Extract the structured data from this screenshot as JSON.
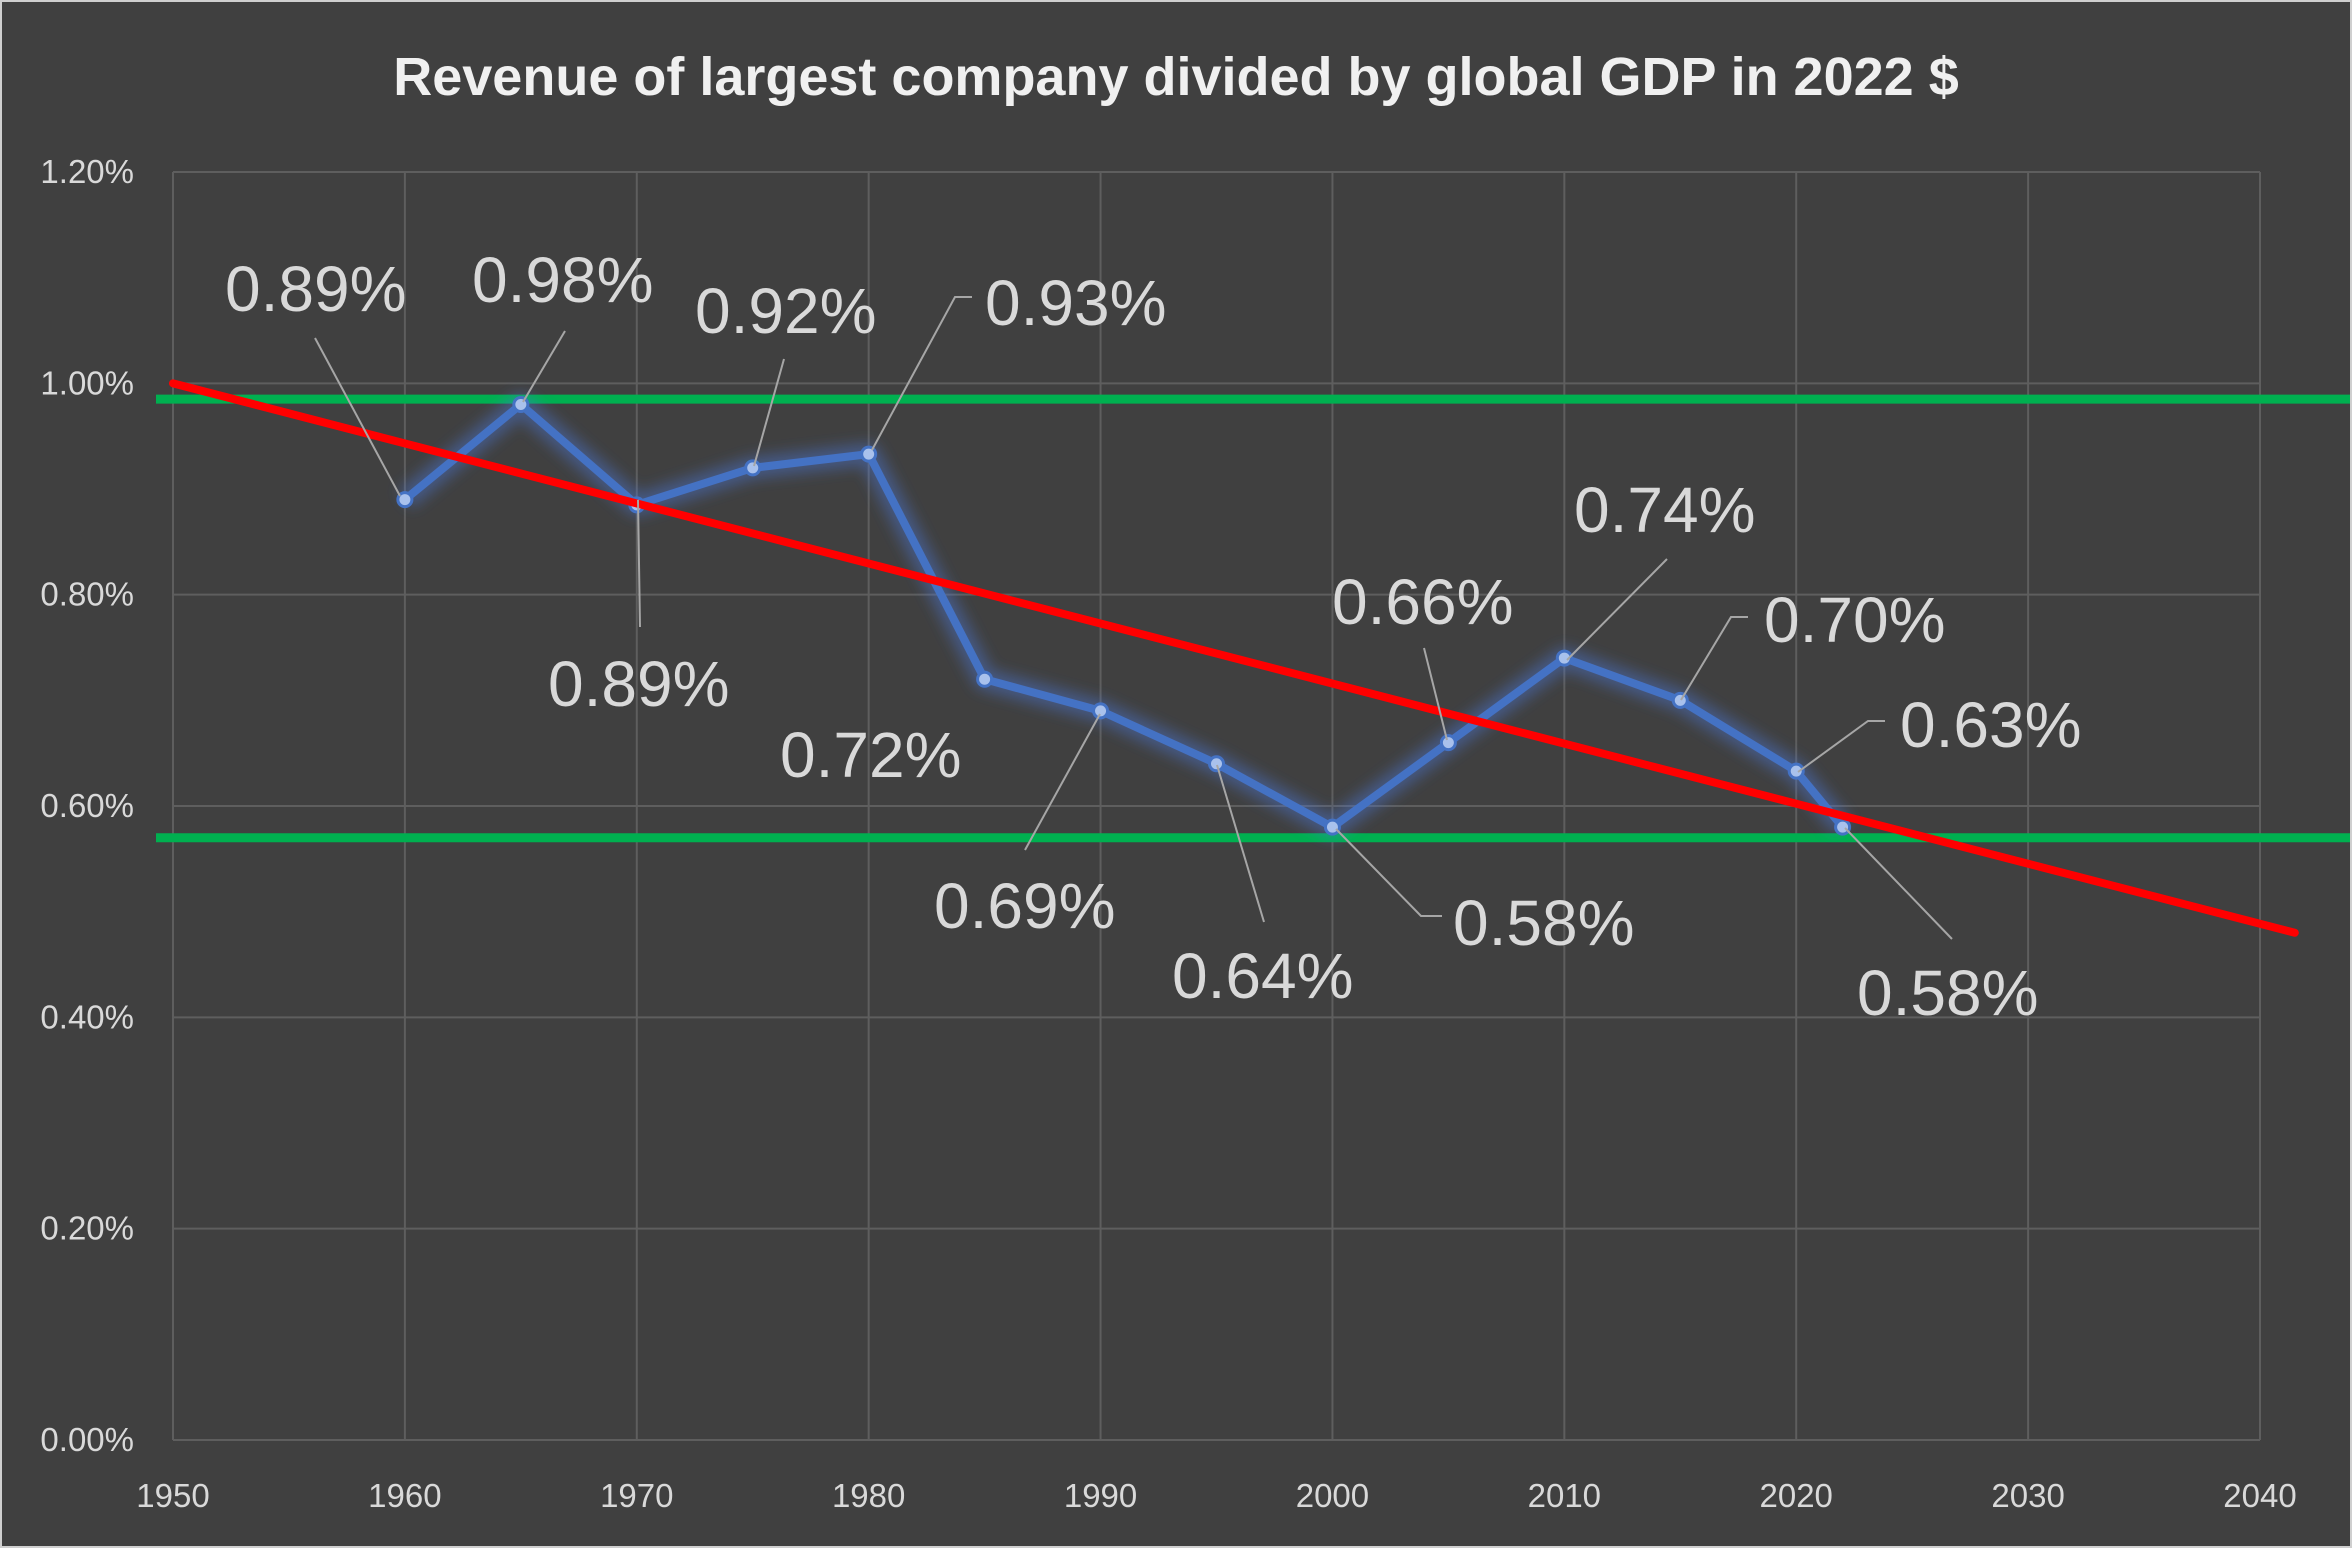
{
  "chart_data": {
    "type": "line",
    "title": "Revenue of largest company divided by global GDP in 2022 $",
    "xlabel": "",
    "ylabel": "",
    "xlim": [
      1950,
      2040
    ],
    "ylim": [
      0,
      1.2
    ],
    "x_ticks": [
      "1950",
      "1960",
      "1970",
      "1980",
      "1990",
      "2000",
      "2010",
      "2020",
      "2030",
      "2040"
    ],
    "y_ticks": [
      "0.00%",
      "0.20%",
      "0.40%",
      "0.60%",
      "0.80%",
      "1.00%",
      "1.20%"
    ],
    "grid": true,
    "legend": "none",
    "series": [
      {
        "x": [
          1960,
          1965,
          1970,
          1975,
          1980,
          1985,
          1990,
          1995,
          2000,
          2005,
          2010,
          2015,
          2020,
          2022
        ],
        "y": [
          0.89,
          0.98,
          0.885,
          0.92,
          0.933,
          0.72,
          0.69,
          0.64,
          0.58,
          0.66,
          0.74,
          0.7,
          0.633,
          0.58
        ],
        "labels": [
          "0.89%",
          "0.98%",
          "0.89%",
          "0.92%",
          "0.93%",
          "0.72%",
          "0.69%",
          "0.64%",
          "0.58%",
          "0.66%",
          "0.74%",
          "0.70%",
          "0.63%",
          "0.58%"
        ],
        "color": "#4472c4"
      }
    ],
    "trendline": {
      "x": [
        1950,
        2041.5
      ],
      "y": [
        1.0,
        0.48
      ],
      "color": "#ff0000"
    },
    "reference_lines": [
      {
        "y": 0.985,
        "color": "#00b050"
      },
      {
        "y": 0.57,
        "color": "#00b050"
      }
    ]
  }
}
